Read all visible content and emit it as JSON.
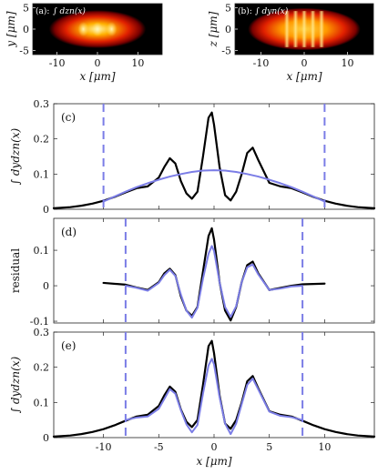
{
  "chart_data": [
    {
      "id": "a",
      "type": "heatmap",
      "panel_label": "(a):",
      "inset_label": "∫ dzn(x)",
      "xlabel": "x [μm]",
      "ylabel": "y [μm]",
      "xlim": [
        -16,
        16
      ],
      "ylim": [
        -6,
        6
      ],
      "xticks": [
        -10,
        0,
        10
      ],
      "yticks": [
        -5,
        0,
        5
      ],
      "colormap": [
        "#000000",
        "#7a0000",
        "#e02000",
        "#ff9a00",
        "#fff3a0"
      ],
      "blob": {
        "x_halfwidth": 12,
        "y_halfwidth": 4.5,
        "peaks_x": [
          -3.5,
          0,
          3.5
        ]
      }
    },
    {
      "id": "b",
      "type": "heatmap",
      "panel_label": "(b):",
      "inset_label": "∫ dyn(x)",
      "xlabel": "x [μm]",
      "ylabel": "z [μm]",
      "xlim": [
        -16,
        16
      ],
      "ylim": [
        -6,
        6
      ],
      "xticks": [
        -10,
        0,
        10
      ],
      "yticks": [
        -5,
        0,
        5
      ],
      "colormap": [
        "#000000",
        "#7a0000",
        "#e02000",
        "#ff9a00",
        "#fff3a0"
      ],
      "blob": {
        "x_halfwidth": 13,
        "y_halfwidth": 5,
        "peaks_x": [
          -4,
          -2,
          0,
          2,
          4
        ]
      }
    },
    {
      "id": "c",
      "type": "line",
      "panel_label": "(c)",
      "ylabel": "∫ dydzn(x)",
      "xlim": [
        -14.5,
        14.5
      ],
      "ylim": [
        0,
        0.3
      ],
      "xticks": [
        -10,
        -5,
        0,
        5,
        10
      ],
      "yticks": [
        0,
        0.1,
        0.2,
        0.3
      ],
      "vlines": [
        -10,
        10
      ],
      "series": [
        {
          "color": "#000000",
          "x": [
            -14.5,
            -13,
            -12,
            -11,
            -10,
            -9,
            -8,
            -7,
            -6,
            -5,
            -4.5,
            -4,
            -3.5,
            -3,
            -2.5,
            -2,
            -1.5,
            -1,
            -0.5,
            -0.2,
            0,
            0.5,
            1,
            1.5,
            2,
            2.5,
            3,
            3.5,
            4,
            5,
            6,
            7,
            8,
            9,
            10,
            11,
            12,
            13,
            14.5
          ],
          "y": [
            0.003,
            0.006,
            0.01,
            0.016,
            0.024,
            0.035,
            0.048,
            0.06,
            0.065,
            0.09,
            0.12,
            0.145,
            0.13,
            0.08,
            0.045,
            0.03,
            0.05,
            0.15,
            0.26,
            0.275,
            0.24,
            0.12,
            0.04,
            0.025,
            0.05,
            0.1,
            0.16,
            0.175,
            0.14,
            0.075,
            0.065,
            0.06,
            0.048,
            0.035,
            0.024,
            0.016,
            0.01,
            0.006,
            0.003
          ]
        },
        {
          "color": "#7b7de6",
          "x": [
            -10,
            -9,
            -8,
            -7,
            -6,
            -5,
            -4,
            -3,
            -2,
            -1,
            0,
            1,
            2,
            3,
            4,
            5,
            6,
            7,
            8,
            9,
            10
          ],
          "y": [
            0.022,
            0.036,
            0.05,
            0.063,
            0.074,
            0.084,
            0.093,
            0.1,
            0.106,
            0.11,
            0.111,
            0.11,
            0.106,
            0.1,
            0.093,
            0.084,
            0.074,
            0.063,
            0.05,
            0.036,
            0.022
          ]
        }
      ]
    },
    {
      "id": "d",
      "type": "line",
      "panel_label": "(d)",
      "ylabel": "residual",
      "xlim": [
        -14.5,
        14.5
      ],
      "ylim": [
        -0.105,
        0.19
      ],
      "xticks": [
        -10,
        -5,
        0,
        5,
        10
      ],
      "yticks": [
        -0.1,
        0,
        0.1
      ],
      "vlines": [
        -8,
        8
      ],
      "series": [
        {
          "color": "#000000",
          "x": [
            -10,
            -8,
            -7,
            -6,
            -5,
            -4.5,
            -4,
            -3.5,
            -3,
            -2.5,
            -2,
            -1.5,
            -1,
            -0.5,
            -0.2,
            0,
            0.5,
            1,
            1.5,
            2,
            2.5,
            3,
            3.5,
            4,
            5,
            6,
            7,
            8,
            10
          ],
          "y": [
            0.008,
            0.003,
            -0.005,
            -0.012,
            0.01,
            0.035,
            0.048,
            0.03,
            -0.03,
            -0.07,
            -0.085,
            -0.06,
            0.04,
            0.14,
            0.162,
            0.13,
            0.01,
            -0.07,
            -0.098,
            -0.06,
            0.01,
            0.058,
            0.068,
            0.035,
            -0.012,
            -0.006,
            0.0,
            0.004,
            0.006
          ]
        },
        {
          "color": "#7b7de6",
          "x": [
            -8,
            -7,
            -6,
            -5,
            -4.5,
            -4,
            -3.5,
            -3,
            -2.5,
            -2,
            -1.5,
            -1,
            -0.5,
            -0.2,
            0,
            0.5,
            1,
            1.5,
            2,
            2.5,
            3,
            3.5,
            4,
            5,
            6,
            7,
            8
          ],
          "y": [
            0.0,
            -0.006,
            -0.014,
            0.008,
            0.03,
            0.045,
            0.028,
            -0.025,
            -0.07,
            -0.09,
            -0.062,
            0.02,
            0.09,
            0.112,
            0.098,
            0.01,
            -0.06,
            -0.088,
            -0.058,
            0.01,
            0.052,
            0.06,
            0.032,
            -0.012,
            -0.008,
            -0.002,
            0.0
          ]
        }
      ]
    },
    {
      "id": "e",
      "type": "line",
      "panel_label": "(e)",
      "ylabel": "∫ dydzn(x)",
      "xlabel": "x [μm]",
      "xlim": [
        -14.5,
        14.5
      ],
      "ylim": [
        0,
        0.3
      ],
      "xticks": [
        -10,
        -5,
        0,
        5,
        10
      ],
      "yticks": [
        0,
        0.1,
        0.2,
        0.3
      ],
      "vlines": [
        -8,
        8
      ],
      "series": [
        {
          "color": "#000000",
          "x": [
            -14.5,
            -13,
            -12,
            -11,
            -10,
            -9,
            -8,
            -7,
            -6,
            -5,
            -4.5,
            -4,
            -3.5,
            -3,
            -2.5,
            -2,
            -1.5,
            -1,
            -0.5,
            -0.2,
            0,
            0.5,
            1,
            1.5,
            2,
            2.5,
            3,
            3.5,
            4,
            5,
            6,
            7,
            8,
            9,
            10,
            11,
            12,
            13,
            14.5
          ],
          "y": [
            0.003,
            0.006,
            0.01,
            0.016,
            0.024,
            0.035,
            0.048,
            0.06,
            0.065,
            0.09,
            0.12,
            0.145,
            0.13,
            0.08,
            0.045,
            0.03,
            0.05,
            0.15,
            0.26,
            0.275,
            0.24,
            0.12,
            0.04,
            0.025,
            0.05,
            0.1,
            0.16,
            0.175,
            0.14,
            0.075,
            0.065,
            0.06,
            0.048,
            0.035,
            0.024,
            0.016,
            0.01,
            0.006,
            0.003
          ]
        },
        {
          "color": "#7b7de6",
          "x": [
            -8,
            -7,
            -6,
            -5,
            -4.5,
            -4,
            -3.5,
            -3,
            -2.5,
            -2,
            -1.5,
            -1,
            -0.5,
            -0.2,
            0,
            0.5,
            1,
            1.5,
            2,
            2.5,
            3,
            3.5,
            4,
            5,
            6,
            7,
            8
          ],
          "y": [
            0.05,
            0.057,
            0.06,
            0.082,
            0.11,
            0.138,
            0.125,
            0.078,
            0.038,
            0.015,
            0.036,
            0.125,
            0.205,
            0.224,
            0.208,
            0.115,
            0.04,
            0.01,
            0.04,
            0.095,
            0.15,
            0.168,
            0.137,
            0.074,
            0.062,
            0.058,
            0.05
          ]
        }
      ]
    }
  ]
}
